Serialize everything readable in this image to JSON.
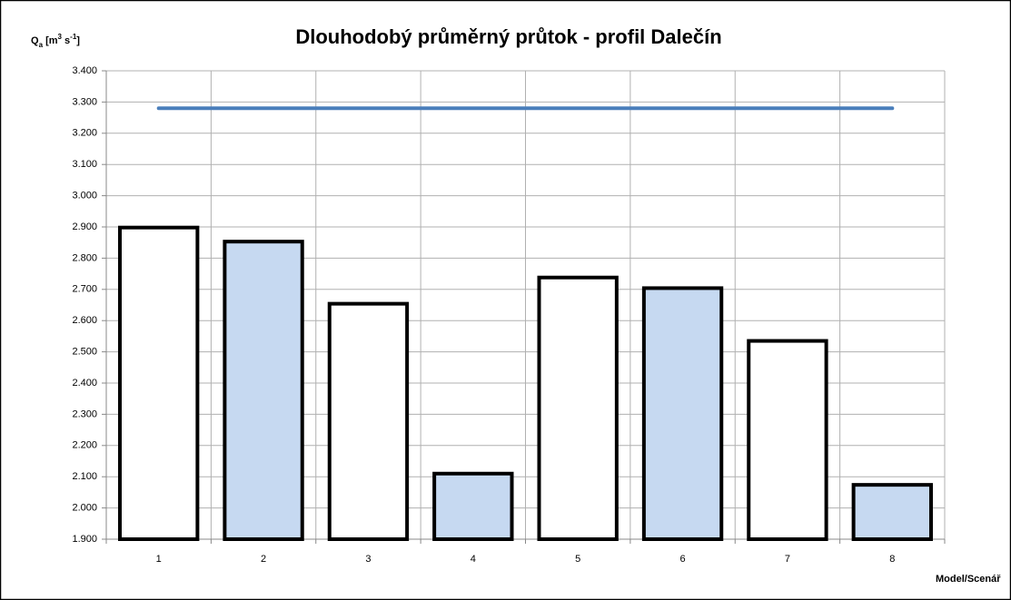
{
  "chart_data": {
    "type": "bar",
    "title": "Dlouhodobý průměrný průtok - profil Dalečín",
    "ylabel_parts": [
      {
        "text": "Q"
      },
      {
        "text": "a",
        "style": "sub"
      },
      {
        "text": " [m"
      },
      {
        "text": "3",
        "style": "sup"
      },
      {
        "text": " s"
      },
      {
        "text": "-1",
        "style": "sup"
      },
      {
        "text": "]"
      }
    ],
    "xlabel": "Model/Scenář",
    "categories": [
      "1",
      "2",
      "3",
      "4",
      "5",
      "6",
      "7",
      "8"
    ],
    "series": [
      {
        "kind": "bar",
        "values": [
          2.898,
          2.853,
          2.654,
          2.11,
          2.738,
          2.704,
          2.535,
          2.074
        ],
        "colors": [
          "#ffffff",
          "#c6d9f1",
          "#ffffff",
          "#c6d9f1",
          "#ffffff",
          "#c6d9f1",
          "#ffffff",
          "#c6d9f1"
        ]
      },
      {
        "kind": "line",
        "color": "#4a7ebb",
        "values": [
          3.28,
          3.28,
          3.28,
          3.28,
          3.28,
          3.28,
          3.28,
          3.28
        ]
      }
    ],
    "ylim": [
      1.9,
      3.4
    ],
    "yticks": [
      {
        "value": 1.9,
        "label": "1.900"
      },
      {
        "value": 2.0,
        "label": "2.000"
      },
      {
        "value": 2.1,
        "label": "2.100"
      },
      {
        "value": 2.2,
        "label": "2.200"
      },
      {
        "value": 2.3,
        "label": "2.300"
      },
      {
        "value": 2.4,
        "label": "2.400"
      },
      {
        "value": 2.5,
        "label": "2.500"
      },
      {
        "value": 2.6,
        "label": "2.600"
      },
      {
        "value": 2.7,
        "label": "2.700"
      },
      {
        "value": 2.8,
        "label": "2.800"
      },
      {
        "value": 2.9,
        "label": "2.900"
      },
      {
        "value": 3.0,
        "label": "3.000"
      },
      {
        "value": 3.1,
        "label": "3.100"
      },
      {
        "value": 3.2,
        "label": "3.200"
      },
      {
        "value": 3.3,
        "label": "3.300"
      },
      {
        "value": 3.4,
        "label": "3.400"
      }
    ],
    "grid": true
  }
}
